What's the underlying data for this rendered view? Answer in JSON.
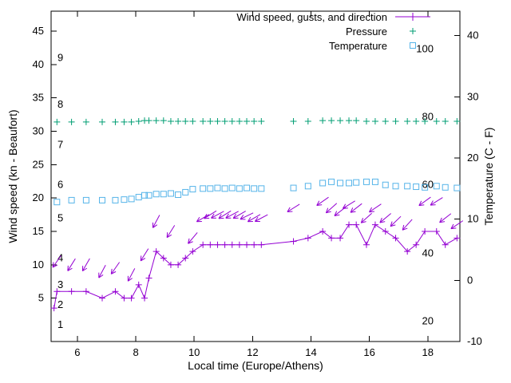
{
  "colors": {
    "wind": "#9400d3",
    "pressure": "#009e73",
    "temperature": "#56b4e9",
    "axis": "#000000",
    "background": "#ffffff"
  },
  "chart_data": {
    "type": "line",
    "title": "",
    "xlabel": "Local time (Europe/Athens)",
    "ylabel": "Wind speed (kn - Beaufort)",
    "y2label": "Temperature (C - F)",
    "x_range": [
      5.1,
      19.1
    ],
    "y_left_range": [
      -1.5,
      48
    ],
    "y_right_range": [
      -10,
      44
    ],
    "x_ticks": [
      6,
      8,
      10,
      12,
      14,
      16,
      18
    ],
    "y_left_ticks": [
      5,
      10,
      15,
      20,
      25,
      30,
      35,
      40,
      45
    ],
    "y_right_ticks": [
      -10,
      0,
      10,
      20,
      30,
      40
    ],
    "legend_position": "top-right",
    "grid": false,
    "beaufort_scale_labels": [
      [
        1,
        "1"
      ],
      [
        4,
        "2"
      ],
      [
        7,
        "3"
      ],
      [
        11,
        "4"
      ],
      [
        17,
        "5"
      ],
      [
        22,
        "6"
      ],
      [
        28,
        "7"
      ],
      [
        34,
        "8"
      ],
      [
        41,
        "9"
      ]
    ],
    "fahrenheit_scale_labels": [
      [
        -6.7,
        "20"
      ],
      [
        4.4,
        "40"
      ],
      [
        15.6,
        "60"
      ],
      [
        26.7,
        "80"
      ],
      [
        37.8,
        "100"
      ]
    ],
    "series": [
      {
        "name": "Wind speed, gusts, and direction",
        "marker": "plus",
        "style": "linespoints-with-vectors",
        "axis": "left",
        "color_key": "wind",
        "points": [
          [
            5.2,
            3.5
          ],
          [
            5.3,
            6
          ],
          [
            5.8,
            6
          ],
          [
            6.3,
            6
          ],
          [
            6.85,
            5
          ],
          [
            7.3,
            6
          ],
          [
            7.6,
            5
          ],
          [
            7.85,
            5
          ],
          [
            8.1,
            7
          ],
          [
            8.3,
            5
          ],
          [
            8.45,
            8
          ],
          [
            8.7,
            12
          ],
          [
            8.95,
            11
          ],
          [
            9.2,
            10
          ],
          [
            9.45,
            10
          ],
          [
            9.7,
            11
          ],
          [
            9.95,
            12
          ],
          [
            10.3,
            13
          ],
          [
            10.55,
            13
          ],
          [
            10.8,
            13
          ],
          [
            11.05,
            13
          ],
          [
            11.3,
            13
          ],
          [
            11.55,
            13
          ],
          [
            11.8,
            13
          ],
          [
            12.05,
            13
          ],
          [
            12.3,
            13
          ],
          [
            13.4,
            13.5
          ],
          [
            13.9,
            14
          ],
          [
            14.4,
            15
          ],
          [
            14.7,
            14
          ],
          [
            15.0,
            14
          ],
          [
            15.3,
            16
          ],
          [
            15.55,
            16
          ],
          [
            15.9,
            13
          ],
          [
            16.2,
            16
          ],
          [
            16.55,
            15
          ],
          [
            16.9,
            14
          ],
          [
            17.3,
            12
          ],
          [
            17.6,
            13
          ],
          [
            17.9,
            15
          ],
          [
            18.3,
            15
          ],
          [
            18.6,
            13
          ],
          [
            19.0,
            14
          ]
        ],
        "gust_vectors": [
          [
            5.3,
            10.5,
            235
          ],
          [
            5.8,
            10,
            238
          ],
          [
            6.3,
            10,
            240
          ],
          [
            6.85,
            9,
            242
          ],
          [
            7.3,
            9.5,
            235
          ],
          [
            7.85,
            8.5,
            242
          ],
          [
            8.3,
            11.5,
            238
          ],
          [
            8.7,
            16.5,
            242
          ],
          [
            9.2,
            15,
            238
          ],
          [
            9.95,
            14,
            230
          ],
          [
            10.3,
            17,
            210
          ],
          [
            10.55,
            17.5,
            212
          ],
          [
            10.8,
            17.5,
            208
          ],
          [
            11.05,
            17.5,
            212
          ],
          [
            11.3,
            17.5,
            208
          ],
          [
            11.55,
            17.5,
            210
          ],
          [
            11.8,
            17.3,
            206
          ],
          [
            12.05,
            17,
            210
          ],
          [
            12.3,
            17,
            208
          ],
          [
            13.4,
            18.5,
            212
          ],
          [
            14.4,
            19.5,
            215
          ],
          [
            14.7,
            18.5,
            222
          ],
          [
            15.0,
            18,
            218
          ],
          [
            15.3,
            19,
            212
          ],
          [
            15.55,
            18.5,
            218
          ],
          [
            15.9,
            17,
            222
          ],
          [
            16.2,
            18.5,
            214
          ],
          [
            16.55,
            17,
            220
          ],
          [
            16.9,
            16.5,
            224
          ],
          [
            17.3,
            16,
            228
          ],
          [
            17.9,
            19.5,
            216
          ],
          [
            18.3,
            19.5,
            212
          ],
          [
            18.6,
            17,
            218
          ],
          [
            19.0,
            16,
            214
          ]
        ]
      },
      {
        "name": "Pressure",
        "marker": "plus",
        "style": "points",
        "axis": "left",
        "color_key": "pressure",
        "points": [
          [
            5.3,
            31.4
          ],
          [
            5.8,
            31.4
          ],
          [
            6.3,
            31.4
          ],
          [
            6.85,
            31.4
          ],
          [
            7.3,
            31.4
          ],
          [
            7.6,
            31.4
          ],
          [
            7.85,
            31.4
          ],
          [
            8.1,
            31.5
          ],
          [
            8.3,
            31.6
          ],
          [
            8.45,
            31.6
          ],
          [
            8.7,
            31.6
          ],
          [
            8.95,
            31.6
          ],
          [
            9.2,
            31.5
          ],
          [
            9.45,
            31.5
          ],
          [
            9.7,
            31.5
          ],
          [
            9.95,
            31.5
          ],
          [
            10.3,
            31.5
          ],
          [
            10.55,
            31.5
          ],
          [
            10.8,
            31.5
          ],
          [
            11.05,
            31.5
          ],
          [
            11.3,
            31.5
          ],
          [
            11.55,
            31.5
          ],
          [
            11.8,
            31.5
          ],
          [
            12.05,
            31.5
          ],
          [
            12.3,
            31.5
          ],
          [
            13.4,
            31.5
          ],
          [
            13.9,
            31.5
          ],
          [
            14.4,
            31.6
          ],
          [
            14.7,
            31.6
          ],
          [
            15.0,
            31.6
          ],
          [
            15.3,
            31.6
          ],
          [
            15.55,
            31.6
          ],
          [
            15.9,
            31.5
          ],
          [
            16.2,
            31.5
          ],
          [
            16.55,
            31.5
          ],
          [
            16.9,
            31.5
          ],
          [
            17.3,
            31.5
          ],
          [
            17.6,
            31.5
          ],
          [
            17.9,
            31.5
          ],
          [
            18.3,
            31.5
          ],
          [
            18.6,
            31.5
          ],
          [
            19.0,
            31.5
          ]
        ]
      },
      {
        "name": "Temperature",
        "marker": "open-square",
        "style": "points",
        "axis": "right",
        "color_key": "temperature",
        "points": [
          [
            5.3,
            12.8
          ],
          [
            5.8,
            13.1
          ],
          [
            6.3,
            13.1
          ],
          [
            6.85,
            13.1
          ],
          [
            7.3,
            13.1
          ],
          [
            7.6,
            13.2
          ],
          [
            7.85,
            13.3
          ],
          [
            8.1,
            13.6
          ],
          [
            8.3,
            13.9
          ],
          [
            8.45,
            13.9
          ],
          [
            8.7,
            14.1
          ],
          [
            8.95,
            14.1
          ],
          [
            9.2,
            14.2
          ],
          [
            9.45,
            14.0
          ],
          [
            9.7,
            14.4
          ],
          [
            9.95,
            14.9
          ],
          [
            10.3,
            15.0
          ],
          [
            10.55,
            15.0
          ],
          [
            10.8,
            15.1
          ],
          [
            11.05,
            15.0
          ],
          [
            11.3,
            15.1
          ],
          [
            11.55,
            15.0
          ],
          [
            11.8,
            15.1
          ],
          [
            12.05,
            15.0
          ],
          [
            12.3,
            15.0
          ],
          [
            13.4,
            15.1
          ],
          [
            13.9,
            15.4
          ],
          [
            14.4,
            15.9
          ],
          [
            14.7,
            16.1
          ],
          [
            15.0,
            15.9
          ],
          [
            15.3,
            15.9
          ],
          [
            15.55,
            16.0
          ],
          [
            15.9,
            16.1
          ],
          [
            16.2,
            16.1
          ],
          [
            16.55,
            15.6
          ],
          [
            16.9,
            15.4
          ],
          [
            17.3,
            15.4
          ],
          [
            17.6,
            15.3
          ],
          [
            17.9,
            15.2
          ],
          [
            18.3,
            15.4
          ],
          [
            18.6,
            15.2
          ],
          [
            19.0,
            15.1
          ]
        ]
      }
    ]
  }
}
